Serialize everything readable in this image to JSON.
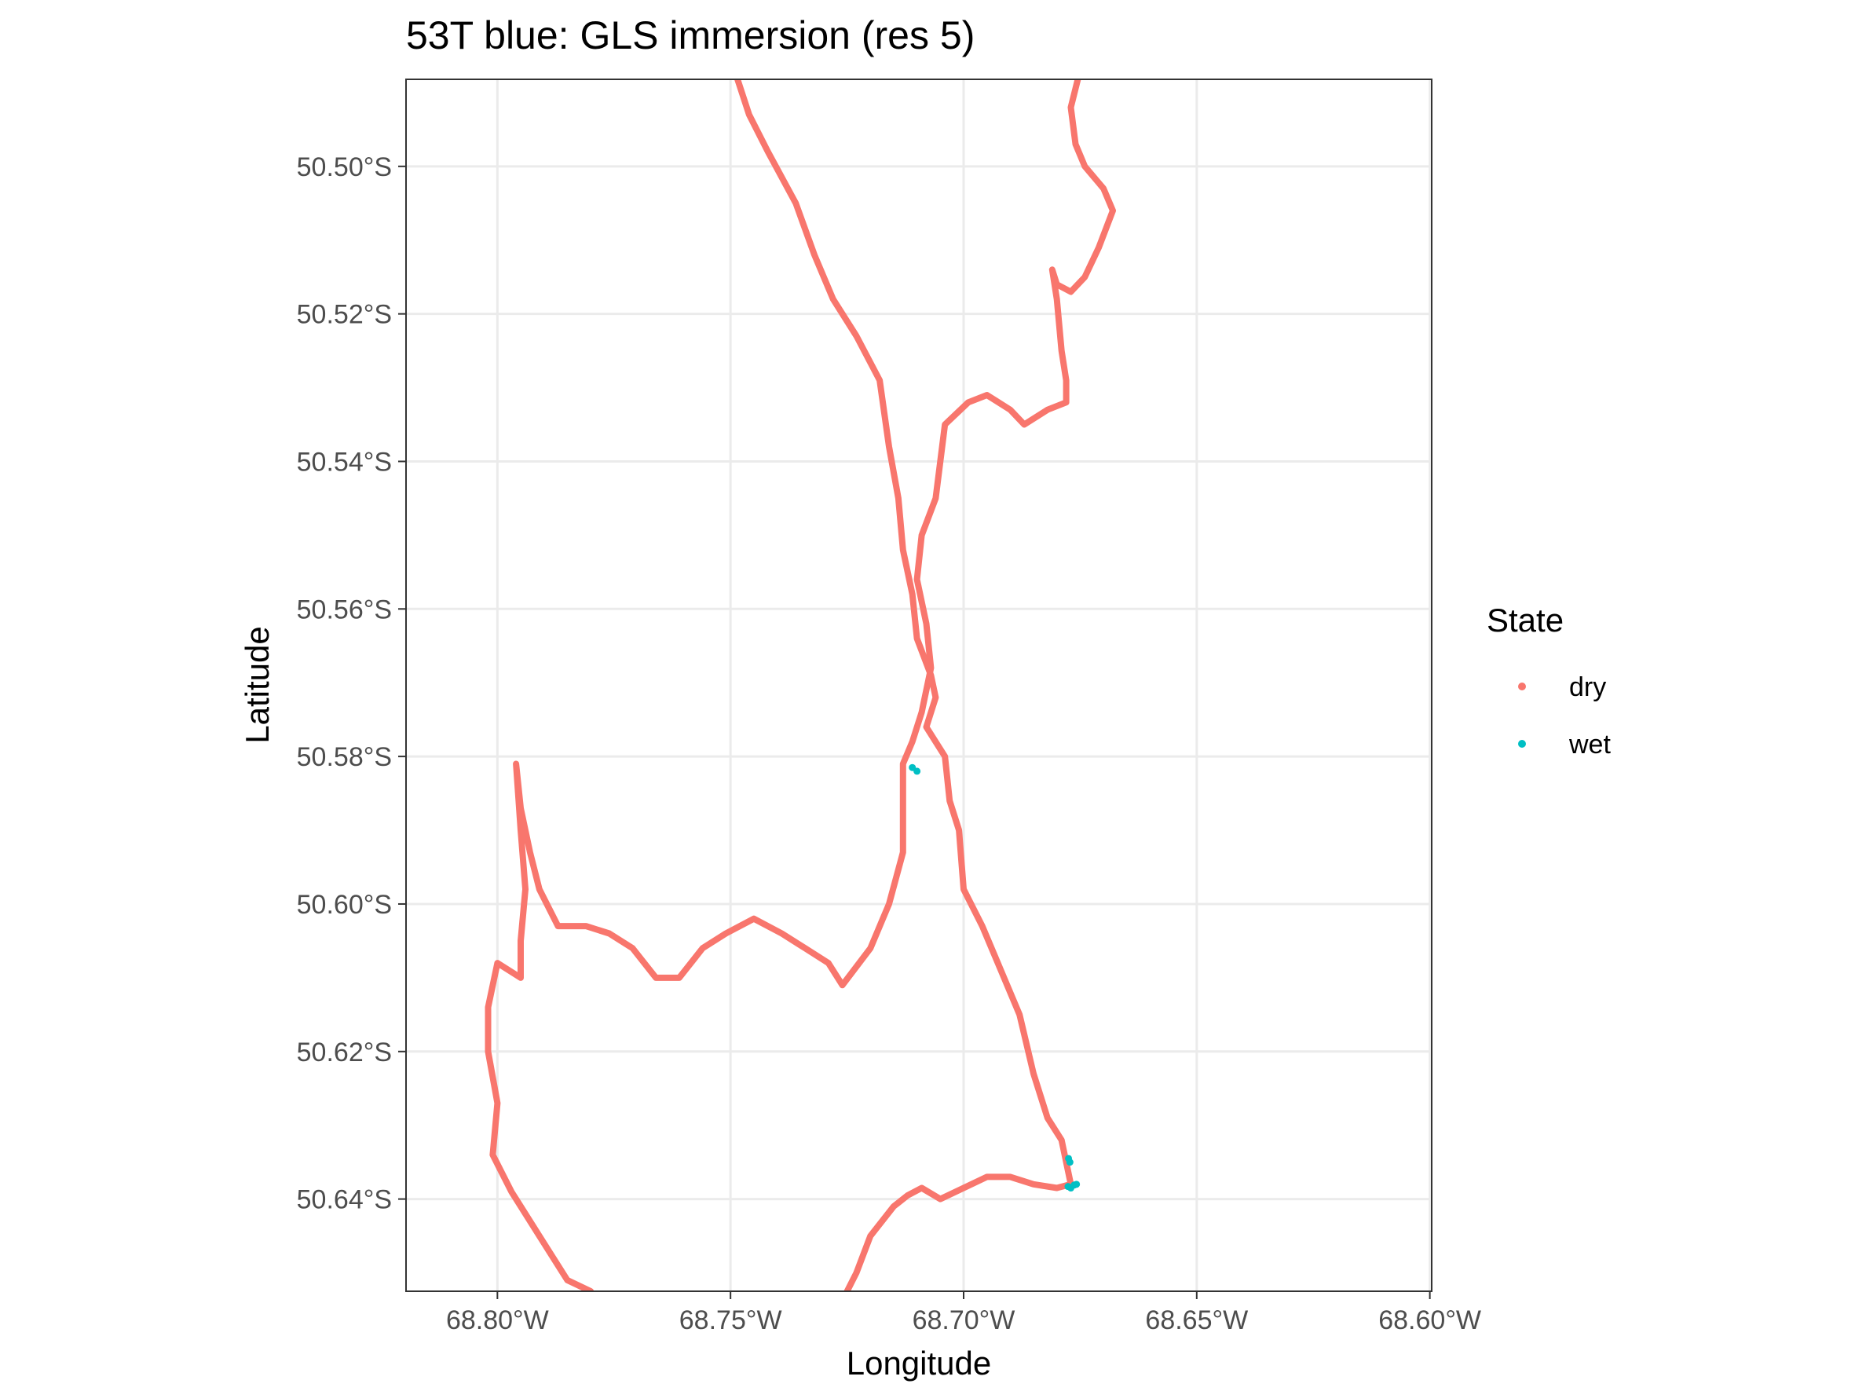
{
  "chart_data": {
    "type": "scatter",
    "title": "53T blue: GLS immersion (res 5)",
    "xlabel": "Longitude",
    "ylabel": "Latitude",
    "xlim": [
      -68.8196,
      -68.5996
    ],
    "ylim": [
      -50.6525,
      -50.4882
    ],
    "x_ticks": [
      -68.8,
      -68.75,
      -68.7,
      -68.65,
      -68.6
    ],
    "x_tick_labels": [
      "68.80°W",
      "68.75°W",
      "68.70°W",
      "68.65°W",
      "68.60°W"
    ],
    "y_ticks": [
      -50.5,
      -50.52,
      -50.54,
      -50.56,
      -50.58,
      -50.6,
      -50.62,
      -50.64
    ],
    "y_tick_labels": [
      "50.50°S",
      "50.52°S",
      "50.54°S",
      "50.56°S",
      "50.58°S",
      "50.60°S",
      "50.62°S",
      "50.64°S"
    ],
    "grid": true,
    "legend": {
      "title": "State",
      "placement": "right"
    },
    "series": [
      {
        "name": "dry",
        "color": "#F8766D",
        "paths": [
          [
            [
              -68.7485,
              -50.4882
            ],
            [
              -68.746,
              -50.493
            ],
            [
              -68.742,
              -50.498
            ],
            [
              -68.736,
              -50.505
            ],
            [
              -68.732,
              -50.512
            ],
            [
              -68.728,
              -50.518
            ],
            [
              -68.723,
              -50.523
            ],
            [
              -68.718,
              -50.529
            ],
            [
              -68.716,
              -50.538
            ],
            [
              -68.714,
              -50.545
            ],
            [
              -68.713,
              -50.552
            ],
            [
              -68.711,
              -50.558
            ],
            [
              -68.71,
              -50.564
            ],
            [
              -68.707,
              -50.569
            ],
            [
              -68.706,
              -50.572
            ],
            [
              -68.708,
              -50.576
            ],
            [
              -68.704,
              -50.58
            ],
            [
              -68.703,
              -50.586
            ],
            [
              -68.701,
              -50.59
            ],
            [
              -68.7,
              -50.598
            ],
            [
              -68.696,
              -50.603
            ],
            [
              -68.692,
              -50.609
            ],
            [
              -68.688,
              -50.615
            ],
            [
              -68.685,
              -50.623
            ],
            [
              -68.682,
              -50.629
            ],
            [
              -68.679,
              -50.632
            ],
            [
              -68.678,
              -50.635
            ],
            [
              -68.677,
              -50.638
            ],
            [
              -68.68,
              -50.6385
            ],
            [
              -68.685,
              -50.638
            ],
            [
              -68.69,
              -50.637
            ],
            [
              -68.695,
              -50.637
            ],
            [
              -68.7,
              -50.6385
            ],
            [
              -68.705,
              -50.64
            ],
            [
              -68.709,
              -50.6385
            ],
            [
              -68.712,
              -50.6395
            ],
            [
              -68.715,
              -50.641
            ],
            [
              -68.72,
              -50.645
            ],
            [
              -68.723,
              -50.65
            ],
            [
              -68.725,
              -50.6525
            ]
          ],
          [
            [
              -68.6755,
              -50.4882
            ],
            [
              -68.677,
              -50.492
            ],
            [
              -68.676,
              -50.497
            ],
            [
              -68.674,
              -50.5
            ],
            [
              -68.67,
              -50.503
            ],
            [
              -68.668,
              -50.506
            ],
            [
              -68.671,
              -50.511
            ],
            [
              -68.674,
              -50.515
            ],
            [
              -68.677,
              -50.517
            ],
            [
              -68.68,
              -50.516
            ],
            [
              -68.681,
              -50.514
            ],
            [
              -68.68,
              -50.518
            ],
            [
              -68.679,
              -50.525
            ],
            [
              -68.678,
              -50.529
            ],
            [
              -68.678,
              -50.532
            ],
            [
              -68.682,
              -50.533
            ],
            [
              -68.687,
              -50.535
            ],
            [
              -68.69,
              -50.533
            ],
            [
              -68.695,
              -50.531
            ],
            [
              -68.699,
              -50.532
            ],
            [
              -68.704,
              -50.535
            ],
            [
              -68.705,
              -50.54
            ],
            [
              -68.706,
              -50.545
            ],
            [
              -68.709,
              -50.55
            ],
            [
              -68.71,
              -50.556
            ],
            [
              -68.708,
              -50.562
            ],
            [
              -68.707,
              -50.568
            ],
            [
              -68.709,
              -50.574
            ],
            [
              -68.711,
              -50.578
            ],
            [
              -68.713,
              -50.581
            ],
            [
              -68.713,
              -50.587
            ],
            [
              -68.713,
              -50.593
            ],
            [
              -68.716,
              -50.6
            ],
            [
              -68.72,
              -50.606
            ],
            [
              -68.726,
              -50.611
            ],
            [
              -68.729,
              -50.608
            ],
            [
              -68.734,
              -50.606
            ],
            [
              -68.739,
              -50.604
            ],
            [
              -68.745,
              -50.602
            ],
            [
              -68.751,
              -50.604
            ],
            [
              -68.756,
              -50.606
            ],
            [
              -68.761,
              -50.61
            ],
            [
              -68.766,
              -50.61
            ],
            [
              -68.771,
              -50.606
            ],
            [
              -68.776,
              -50.604
            ],
            [
              -68.781,
              -50.603
            ],
            [
              -68.787,
              -50.603
            ],
            [
              -68.791,
              -50.598
            ],
            [
              -68.793,
              -50.593
            ],
            [
              -68.795,
              -50.587
            ],
            [
              -68.796,
              -50.581
            ],
            [
              -68.795,
              -50.59
            ],
            [
              -68.794,
              -50.598
            ],
            [
              -68.795,
              -50.605
            ],
            [
              -68.795,
              -50.61
            ],
            [
              -68.8,
              -50.608
            ],
            [
              -68.802,
              -50.614
            ],
            [
              -68.802,
              -50.62
            ],
            [
              -68.8,
              -50.627
            ],
            [
              -68.801,
              -50.634
            ],
            [
              -68.797,
              -50.639
            ],
            [
              -68.791,
              -50.645
            ],
            [
              -68.785,
              -50.651
            ],
            [
              -68.78,
              -50.6525
            ]
          ]
        ]
      },
      {
        "name": "wet",
        "color": "#00BFC4",
        "points": [
          [
            -68.711,
            -50.5815
          ],
          [
            -68.71,
            -50.582
          ],
          [
            -68.6775,
            -50.6345
          ],
          [
            -68.6772,
            -50.635
          ],
          [
            -68.6776,
            -50.6383
          ],
          [
            -68.677,
            -50.6385
          ],
          [
            -68.6763,
            -50.6381
          ],
          [
            -68.6758,
            -50.638
          ]
        ]
      }
    ]
  }
}
